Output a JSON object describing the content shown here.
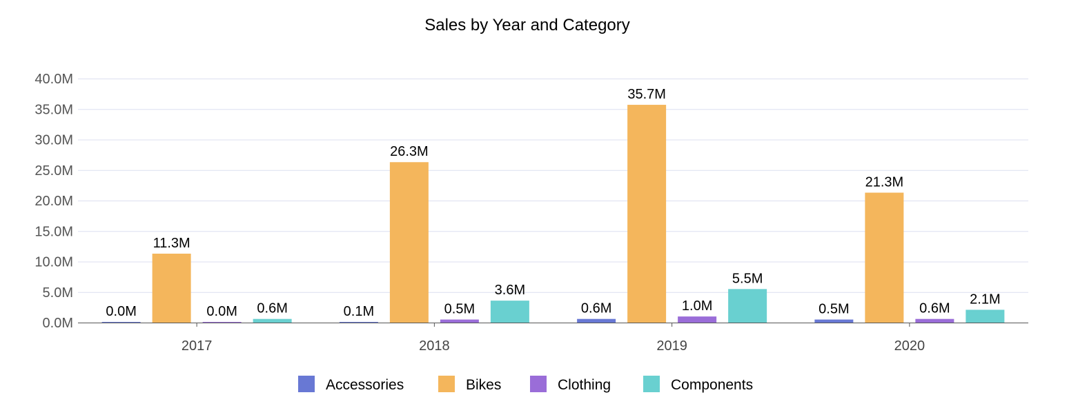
{
  "chart_data": {
    "type": "bar",
    "title": "Sales by Year and Category",
    "xlabel": "",
    "ylabel": "",
    "categories": [
      "2017",
      "2018",
      "2019",
      "2020"
    ],
    "series": [
      {
        "name": "Accessories",
        "color": "#6878d4",
        "values": [
          0.0,
          0.1,
          0.6,
          0.5
        ],
        "labels": [
          "0.0M",
          "0.1M",
          "0.6M",
          "0.5M"
        ]
      },
      {
        "name": "Bikes",
        "color": "#f4b65c",
        "values": [
          11.3,
          26.3,
          35.7,
          21.3
        ],
        "labels": [
          "11.3M",
          "26.3M",
          "35.7M",
          "21.3M"
        ]
      },
      {
        "name": "Clothing",
        "color": "#9a6dd8",
        "values": [
          0.0,
          0.5,
          1.0,
          0.6
        ],
        "labels": [
          "0.0M",
          "0.5M",
          "1.0M",
          "0.6M"
        ]
      },
      {
        "name": "Components",
        "color": "#69d0d0",
        "values": [
          0.6,
          3.6,
          5.5,
          2.1
        ],
        "labels": [
          "0.6M",
          "3.6M",
          "5.5M",
          "2.1M"
        ]
      }
    ],
    "ylim": [
      0,
      40
    ],
    "yticks": [
      0,
      5,
      10,
      15,
      20,
      25,
      30,
      35,
      40
    ],
    "ytick_labels": [
      "0.0M",
      "5.0M",
      "10.0M",
      "15.0M",
      "20.0M",
      "25.0M",
      "30.0M",
      "35.0M",
      "40.0M"
    ],
    "grid": true,
    "legend": "bottom-center"
  }
}
